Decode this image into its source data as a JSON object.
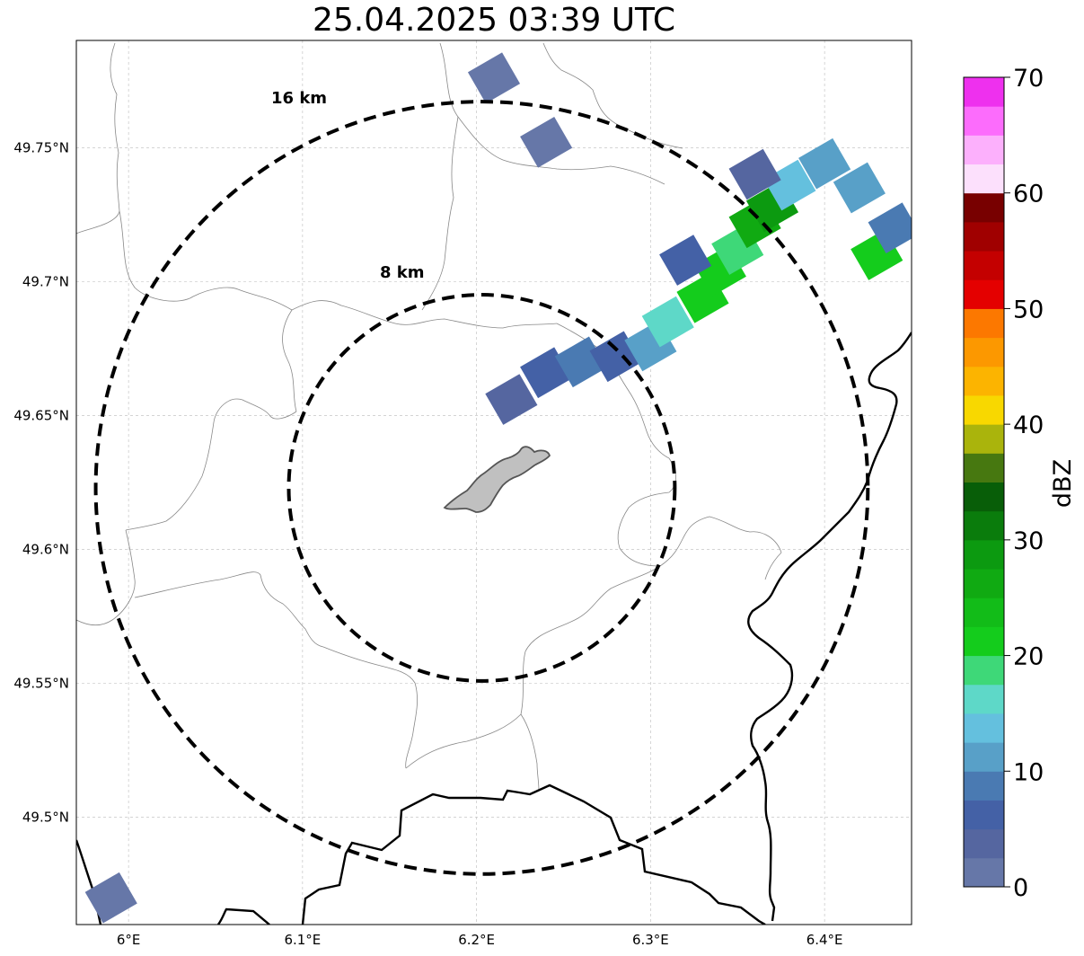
{
  "title": "25.04.2025 03:39 UTC",
  "map": {
    "lon_range": [
      5.97,
      6.45
    ],
    "lat_range": [
      49.46,
      49.79
    ],
    "lon_ticks": [
      {
        "value": 6.0,
        "label": "6°E"
      },
      {
        "value": 6.1,
        "label": "6.1°E"
      },
      {
        "value": 6.2,
        "label": "6.2°E"
      },
      {
        "value": 6.3,
        "label": "6.3°E"
      },
      {
        "value": 6.4,
        "label": "6.4°E"
      }
    ],
    "lat_ticks": [
      {
        "value": 49.5,
        "label": "49.5°N"
      },
      {
        "value": 49.55,
        "label": "49.55°N"
      },
      {
        "value": 49.6,
        "label": "49.6°N"
      },
      {
        "value": 49.65,
        "label": "49.65°N"
      },
      {
        "value": 49.7,
        "label": "49.7°N"
      },
      {
        "value": 49.75,
        "label": "49.75°N"
      }
    ],
    "grid": true,
    "rings": [
      {
        "label": "8 km",
        "radius_km": 8
      },
      {
        "label": "16 km",
        "radius_km": 16
      }
    ],
    "ring_center": {
      "lon": 6.203,
      "lat": 49.623
    }
  },
  "colorbar": {
    "label": "dBZ",
    "min": 0,
    "max": 70,
    "ticks": [
      {
        "value": 0,
        "label": "0"
      },
      {
        "value": 10,
        "label": "10"
      },
      {
        "value": 20,
        "label": "20"
      },
      {
        "value": 30,
        "label": "30"
      },
      {
        "value": 40,
        "label": "40"
      },
      {
        "value": 50,
        "label": "50"
      },
      {
        "value": 60,
        "label": "60"
      },
      {
        "value": 70,
        "label": "70"
      }
    ],
    "colors": [
      "#6677a8",
      "#5566a0",
      "#4461a6",
      "#4a7ab2",
      "#58a0c8",
      "#64c0de",
      "#5ed8c8",
      "#3ed878",
      "#14cc1c",
      "#12bc18",
      "#10aa12",
      "#0c9a10",
      "#0a7c0c",
      "#085e08",
      "#477810",
      "#aab40c",
      "#f8d800",
      "#fcb400",
      "#fc9800",
      "#fc7800",
      "#e40000",
      "#c40000",
      "#a00000",
      "#780000",
      "#fce0fc",
      "#fcb0fc",
      "#fc6cfc",
      "#ee30ee"
    ]
  },
  "chart_data": {
    "type": "heatmap",
    "title": "25.04.2025 03:39 UTC",
    "value_units": "dBZ",
    "value_range": [
      0,
      70
    ],
    "x_axis": "longitude",
    "y_axis": "latitude",
    "xlim": [
      5.97,
      6.45
    ],
    "ylim": [
      49.46,
      49.79
    ],
    "echo_cells": [
      {
        "lon": 6.22,
        "lat": 49.656,
        "value": 3
      },
      {
        "lon": 6.24,
        "lat": 49.666,
        "value": 5
      },
      {
        "lon": 6.26,
        "lat": 49.67,
        "value": 8
      },
      {
        "lon": 6.28,
        "lat": 49.672,
        "value": 6
      },
      {
        "lon": 6.3,
        "lat": 49.676,
        "value": 12
      },
      {
        "lon": 6.31,
        "lat": 49.685,
        "value": 15
      },
      {
        "lon": 6.33,
        "lat": 49.694,
        "value": 20
      },
      {
        "lon": 6.34,
        "lat": 49.704,
        "value": 22
      },
      {
        "lon": 6.35,
        "lat": 49.712,
        "value": 18
      },
      {
        "lon": 6.36,
        "lat": 49.722,
        "value": 26
      },
      {
        "lon": 6.37,
        "lat": 49.728,
        "value": 28
      },
      {
        "lon": 6.38,
        "lat": 49.736,
        "value": 14
      },
      {
        "lon": 6.4,
        "lat": 49.744,
        "value": 10
      },
      {
        "lon": 6.42,
        "lat": 49.735,
        "value": 12
      },
      {
        "lon": 6.43,
        "lat": 49.71,
        "value": 20
      },
      {
        "lon": 6.44,
        "lat": 49.72,
        "value": 8
      },
      {
        "lon": 6.32,
        "lat": 49.708,
        "value": 6
      },
      {
        "lon": 6.36,
        "lat": 49.74,
        "value": 4
      },
      {
        "lon": 6.21,
        "lat": 49.776,
        "value": 2
      },
      {
        "lon": 6.24,
        "lat": 49.752,
        "value": 2
      },
      {
        "lon": 5.99,
        "lat": 49.47,
        "value": 2
      }
    ]
  }
}
